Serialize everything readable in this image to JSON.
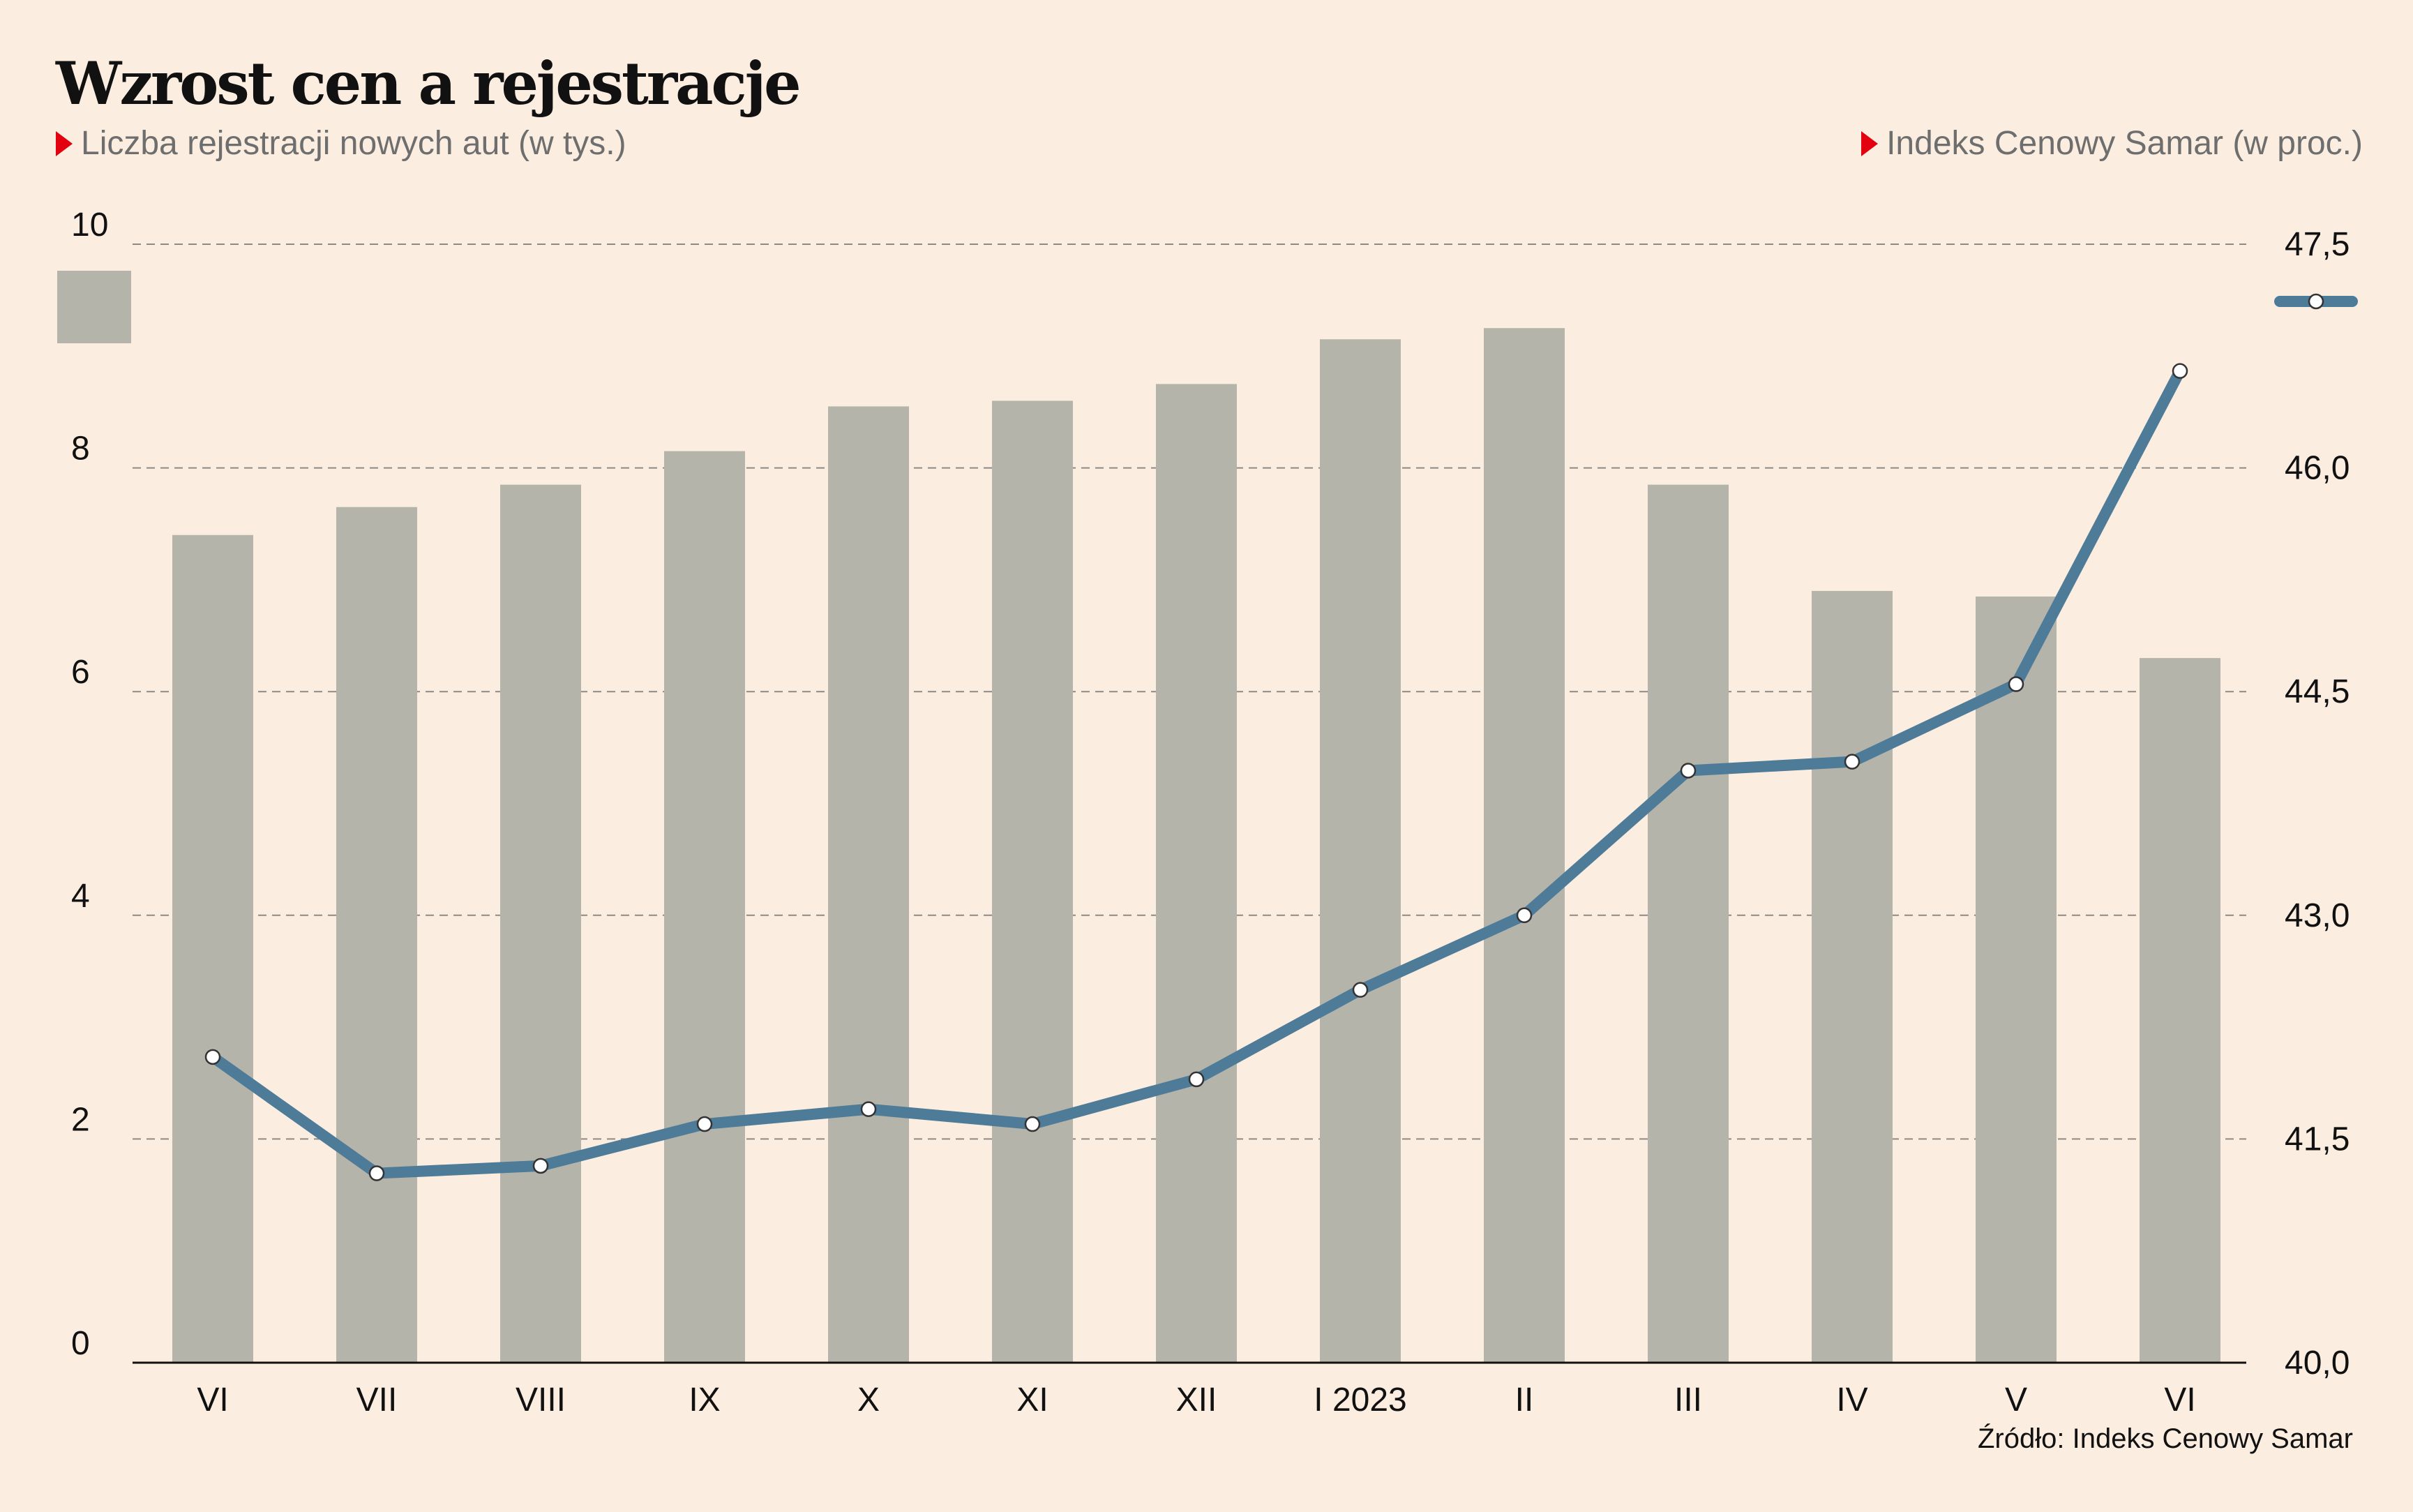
{
  "title": "Wzrost cen a rejestracje",
  "subtitle_left": "Liczba rejestracji nowych aut (w tys.)",
  "subtitle_right": "Indeks Cenowy Samar (w proc.)",
  "source": "Źródło: Indeks Cenowy Samar",
  "colors": {
    "background": "#fbeee1",
    "bars": "#b5b4aa",
    "line": "#4e7b98",
    "marker_fill": "#ffffff",
    "accent": "#e3000f"
  },
  "chart_data": {
    "type": "bar+line",
    "categories": [
      "VI",
      "VII",
      "VIII",
      "IX",
      "X",
      "XI",
      "XII",
      "I 2023",
      "II",
      "III",
      "IV",
      "V",
      "VI"
    ],
    "bars": {
      "axis": "left",
      "values": [
        7.4,
        7.65,
        7.85,
        8.15,
        8.55,
        8.6,
        8.75,
        9.15,
        9.25,
        7.85,
        6.9,
        6.85,
        6.3
      ],
      "ylim": [
        0,
        10
      ],
      "ticks": [
        {
          "value": 0,
          "label": "0"
        },
        {
          "value": 2,
          "label": "2"
        },
        {
          "value": 4,
          "label": "4"
        },
        {
          "value": 6,
          "label": "6"
        },
        {
          "value": 8,
          "label": "8"
        },
        {
          "value": 10,
          "label": "10"
        }
      ]
    },
    "line": {
      "axis": "right",
      "values": [
        42.05,
        41.27,
        41.32,
        41.6,
        41.7,
        41.6,
        41.9,
        42.5,
        43.0,
        43.97,
        44.03,
        44.55,
        46.65
      ],
      "ylim": [
        40.0,
        47.5
      ],
      "ticks": [
        {
          "value": 40.0,
          "label": "40,0"
        },
        {
          "value": 41.5,
          "label": "41,5"
        },
        {
          "value": 43.0,
          "label": "43,0"
        },
        {
          "value": 44.5,
          "label": "44,5"
        },
        {
          "value": 46.0,
          "label": "46,0"
        },
        {
          "value": 47.5,
          "label": "47,5"
        }
      ]
    },
    "grid": "horizontal-dashed"
  }
}
